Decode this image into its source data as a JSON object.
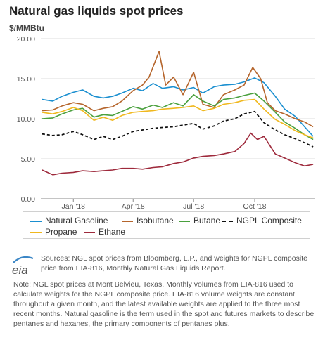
{
  "header": {
    "title": "Natural gas liquids spot prices",
    "unit": "$/MMBtu"
  },
  "legend": {
    "natural_gasoline": "Natural Gasoline",
    "isobutane": "Isobutane",
    "butane": "Butane",
    "ngpl": "NGPL Composite",
    "propane": "Propane",
    "ethane": "Ethane"
  },
  "footer": {
    "source": "Sources: NGL spot prices from Bloomberg, L.P., and weights for NGPL composite price from EIA-816, Monthly Natural Gas Liquids Report.",
    "note": "Note: NGL spot prices at Mont Belvieu, Texas. Monthly volumes from EIA-816 used to calculate weights for the NGPL composite price. EIA-816 volume weights are constant throughout a given month, and the latest available weights are applied to the three most recent months. Natural gasoline is the term used in the spot and futures markets to describe pentanes and hexanes, the primary components of pentanes plus.",
    "logo_text": "eia"
  },
  "chart_data": {
    "type": "line",
    "ylim": [
      0,
      20
    ],
    "yticks": [
      "0.00",
      "5.00",
      "10.00",
      "15.00",
      "20.00"
    ],
    "xticks": [
      {
        "label": "Jan '18",
        "x": "2018-01-01"
      },
      {
        "label": "Apr '18",
        "x": "2018-04-01"
      },
      {
        "label": "Jul '18",
        "x": "2018-07-01"
      },
      {
        "label": "Oct '18",
        "x": "2018-10-01"
      }
    ],
    "xlim": [
      "2017-11-13",
      "2018-12-30"
    ],
    "grid": "horizontal",
    "series": [
      {
        "name": "Natural Gasoline",
        "color": "#1a8fd0",
        "dash": false,
        "x": [
          "2017-11-15",
          "2017-12-01",
          "2017-12-15",
          "2018-01-01",
          "2018-01-15",
          "2018-02-01",
          "2018-02-15",
          "2018-03-01",
          "2018-03-15",
          "2018-04-01",
          "2018-04-15",
          "2018-05-01",
          "2018-05-15",
          "2018-06-01",
          "2018-06-15",
          "2018-07-01",
          "2018-07-15",
          "2018-08-01",
          "2018-08-15",
          "2018-09-01",
          "2018-09-15",
          "2018-10-01",
          "2018-10-15",
          "2018-11-01",
          "2018-11-15",
          "2018-12-01",
          "2018-12-15",
          "2018-12-28"
        ],
        "y": [
          12.4,
          12.2,
          12.8,
          13.3,
          13.6,
          12.8,
          12.6,
          12.8,
          13.2,
          13.8,
          13.5,
          14.4,
          13.8,
          14.0,
          13.6,
          13.9,
          13.2,
          14.0,
          14.2,
          14.3,
          14.6,
          15.1,
          14.5,
          12.8,
          11.2,
          10.3,
          9.0,
          7.8
        ]
      },
      {
        "name": "Isobutane",
        "color": "#b5652c",
        "dash": false,
        "x": [
          "2017-11-15",
          "2017-12-01",
          "2017-12-15",
          "2018-01-01",
          "2018-01-15",
          "2018-02-01",
          "2018-02-15",
          "2018-03-01",
          "2018-03-15",
          "2018-04-01",
          "2018-04-15",
          "2018-04-25",
          "2018-05-01",
          "2018-05-10",
          "2018-05-20",
          "2018-06-01",
          "2018-06-15",
          "2018-07-01",
          "2018-07-15",
          "2018-08-01",
          "2018-08-15",
          "2018-09-01",
          "2018-09-15",
          "2018-09-28",
          "2018-10-10",
          "2018-10-20",
          "2018-11-01",
          "2018-11-15",
          "2018-12-01",
          "2018-12-15",
          "2018-12-28"
        ],
        "y": [
          11.0,
          11.1,
          11.6,
          12.0,
          11.8,
          11.0,
          11.3,
          11.5,
          12.2,
          13.5,
          14.2,
          15.2,
          16.5,
          18.4,
          14.2,
          15.2,
          13.0,
          15.8,
          11.8,
          11.4,
          13.0,
          13.6,
          14.2,
          16.4,
          15.0,
          12.0,
          11.0,
          10.6,
          10.0,
          9.6,
          9.0
        ]
      },
      {
        "name": "Butane",
        "color": "#4aa03e",
        "dash": false,
        "x": [
          "2017-11-15",
          "2017-12-01",
          "2017-12-15",
          "2018-01-01",
          "2018-01-15",
          "2018-02-01",
          "2018-02-15",
          "2018-03-01",
          "2018-03-15",
          "2018-04-01",
          "2018-04-15",
          "2018-05-01",
          "2018-05-15",
          "2018-06-01",
          "2018-06-15",
          "2018-07-01",
          "2018-07-15",
          "2018-08-01",
          "2018-08-15",
          "2018-09-01",
          "2018-09-15",
          "2018-10-01",
          "2018-10-15",
          "2018-11-01",
          "2018-11-15",
          "2018-12-01",
          "2018-12-15",
          "2018-12-28"
        ],
        "y": [
          10.0,
          10.1,
          10.6,
          11.1,
          11.3,
          10.2,
          10.5,
          10.4,
          10.9,
          11.5,
          11.2,
          11.7,
          11.4,
          12.0,
          11.6,
          13.0,
          12.2,
          11.6,
          12.4,
          12.6,
          12.9,
          13.2,
          12.2,
          10.8,
          9.6,
          8.8,
          8.0,
          7.4
        ]
      },
      {
        "name": "NGPL Composite",
        "color": "#111111",
        "dash": true,
        "x": [
          "2017-11-15",
          "2017-12-01",
          "2017-12-15",
          "2018-01-01",
          "2018-01-15",
          "2018-02-01",
          "2018-02-15",
          "2018-03-01",
          "2018-03-15",
          "2018-04-01",
          "2018-04-15",
          "2018-05-01",
          "2018-05-15",
          "2018-06-01",
          "2018-06-15",
          "2018-07-01",
          "2018-07-15",
          "2018-08-01",
          "2018-08-15",
          "2018-09-01",
          "2018-09-15",
          "2018-10-01",
          "2018-10-15",
          "2018-11-01",
          "2018-11-15",
          "2018-12-01",
          "2018-12-15",
          "2018-12-28"
        ],
        "y": [
          8.1,
          7.9,
          8.0,
          8.4,
          8.0,
          7.4,
          7.8,
          7.4,
          7.8,
          8.4,
          8.6,
          8.8,
          8.9,
          9.0,
          9.2,
          9.4,
          8.7,
          9.1,
          9.7,
          10.0,
          10.6,
          10.9,
          9.5,
          8.6,
          8.0,
          7.5,
          7.0,
          6.5
        ]
      },
      {
        "name": "Propane",
        "color": "#f0b81e",
        "dash": false,
        "x": [
          "2017-11-15",
          "2017-12-01",
          "2017-12-15",
          "2018-01-01",
          "2018-01-15",
          "2018-02-01",
          "2018-02-15",
          "2018-03-01",
          "2018-03-15",
          "2018-04-01",
          "2018-04-15",
          "2018-05-01",
          "2018-05-15",
          "2018-06-01",
          "2018-06-15",
          "2018-07-01",
          "2018-07-15",
          "2018-08-01",
          "2018-08-15",
          "2018-09-01",
          "2018-09-15",
          "2018-10-01",
          "2018-10-15",
          "2018-11-01",
          "2018-11-15",
          "2018-12-01",
          "2018-12-15",
          "2018-12-28"
        ],
        "y": [
          10.8,
          10.6,
          10.9,
          11.4,
          11.0,
          9.8,
          10.2,
          9.8,
          10.4,
          10.8,
          10.9,
          11.0,
          11.2,
          11.3,
          11.4,
          11.6,
          11.0,
          11.3,
          11.8,
          12.0,
          12.3,
          12.4,
          11.2,
          9.9,
          9.3,
          8.5,
          8.0,
          7.6
        ]
      },
      {
        "name": "Ethane",
        "color": "#9e2a3c",
        "dash": false,
        "x": [
          "2017-11-15",
          "2017-12-01",
          "2017-12-15",
          "2018-01-01",
          "2018-01-15",
          "2018-02-01",
          "2018-02-15",
          "2018-03-01",
          "2018-03-15",
          "2018-04-01",
          "2018-04-15",
          "2018-05-01",
          "2018-05-15",
          "2018-06-01",
          "2018-06-15",
          "2018-07-01",
          "2018-07-15",
          "2018-08-01",
          "2018-08-15",
          "2018-09-01",
          "2018-09-15",
          "2018-09-25",
          "2018-10-05",
          "2018-10-15",
          "2018-11-01",
          "2018-11-15",
          "2018-12-01",
          "2018-12-15",
          "2018-12-28"
        ],
        "y": [
          3.6,
          3.0,
          3.2,
          3.3,
          3.5,
          3.4,
          3.5,
          3.6,
          3.8,
          3.8,
          3.7,
          3.9,
          4.0,
          4.4,
          4.6,
          5.1,
          5.3,
          5.4,
          5.6,
          5.9,
          6.9,
          8.2,
          7.4,
          7.8,
          5.6,
          5.1,
          4.5,
          4.1,
          4.3
        ]
      }
    ]
  }
}
